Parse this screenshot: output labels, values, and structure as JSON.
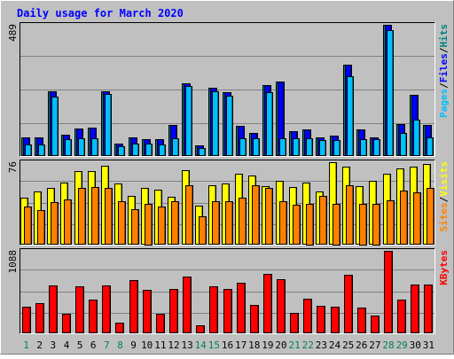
{
  "chart_data": {
    "type": "bar",
    "title": "Daily usage for March 2020",
    "categories": [
      "1",
      "2",
      "3",
      "4",
      "5",
      "6",
      "7",
      "8",
      "9",
      "10",
      "11",
      "12",
      "13",
      "14",
      "15",
      "16",
      "17",
      "18",
      "19",
      "20",
      "21",
      "22",
      "23",
      "24",
      "25",
      "26",
      "27",
      "28",
      "29",
      "30",
      "31"
    ],
    "weekend_days": [
      "1",
      "7",
      "8",
      "14",
      "15",
      "21",
      "22",
      "28",
      "29"
    ],
    "panels": [
      {
        "id": "top",
        "ymax_label": "489",
        "ymax": 489,
        "axis_label_parts": [
          {
            "text": "Pages",
            "color": "#00c0ff"
          },
          {
            "text": "/",
            "color": "#000000"
          },
          {
            "text": "Files",
            "color": "#0000ff"
          },
          {
            "text": "/",
            "color": "#000000"
          },
          {
            "text": "Hits",
            "color": "#008080"
          }
        ],
        "series": [
          {
            "name": "Hits",
            "color": "#008080",
            "values": [
              70,
              70,
              242,
              80,
              102,
              106,
              240,
              45,
              70,
              62,
              62,
              116,
              272,
              40,
              255,
              238,
              112,
              87,
              264,
              277,
              91,
              99,
              70,
              77,
              340,
              100,
              70,
              489,
              120,
              227,
              116
            ]
          },
          {
            "name": "Files",
            "color": "#0000ff",
            "values": [
              70,
              70,
              242,
              80,
              102,
              106,
              240,
              45,
              70,
              62,
              62,
              116,
              272,
              40,
              255,
              238,
              112,
              87,
              264,
              277,
              91,
              99,
              70,
              77,
              340,
              100,
              70,
              489,
              120,
              227,
              116
            ]
          },
          {
            "name": "Pages",
            "color": "#00c0ff",
            "values": [
              44,
              44,
              220,
              62,
              65,
              67,
              230,
              36,
              45,
              45,
              42,
              66,
              260,
              30,
              242,
              225,
              66,
              66,
              239,
              66,
              66,
              66,
              59,
              61,
              297,
              63,
              62,
              470,
              87,
              134,
              68
            ]
          }
        ]
      },
      {
        "id": "middle",
        "ymax_label": "76",
        "ymax": 76,
        "axis_label_parts": [
          {
            "text": "Sites",
            "color": "#ff8000"
          },
          {
            "text": "/",
            "color": "#000000"
          },
          {
            "text": "Visits",
            "color": "#ffff00"
          }
        ],
        "series": [
          {
            "name": "Visits",
            "color": "#ffff00",
            "values": [
              43,
              49,
              52,
              57,
              68,
              68,
              73,
              56,
              45,
              52,
              51,
              44,
              69,
              36,
              55,
              56,
              65,
              64,
              54,
              59,
              53,
              57,
              49,
              76,
              72,
              54,
              59,
              65,
              70,
              72,
              74
            ]
          },
          {
            "name": "Sites",
            "color": "#ff8000",
            "values": [
              35,
              32,
              39,
              42,
              52,
              53,
              52,
              40,
              33,
              38,
              35,
              40,
              55,
              26,
              40,
              40,
              43,
              55,
              52,
              40,
              37,
              38,
              45,
              38,
              55,
              38,
              38,
              41,
              50,
              48,
              52
            ]
          }
        ]
      },
      {
        "id": "bottom",
        "ymax_label": "1088",
        "ymax": 1088,
        "axis_label_parts": [
          {
            "text": "KBytes",
            "color": "#ff0000"
          }
        ],
        "series": [
          {
            "name": "KBytes",
            "color": "#ff0000",
            "values": [
              352,
              399,
              629,
              261,
              615,
              448,
              635,
              140,
              698,
              570,
              261,
              584,
              750,
              111,
              625,
              584,
              663,
              376,
              788,
              718,
              274,
              454,
              364,
              346,
              775,
              338,
              236,
              1088,
              443,
              645,
              640
            ]
          }
        ]
      }
    ]
  }
}
